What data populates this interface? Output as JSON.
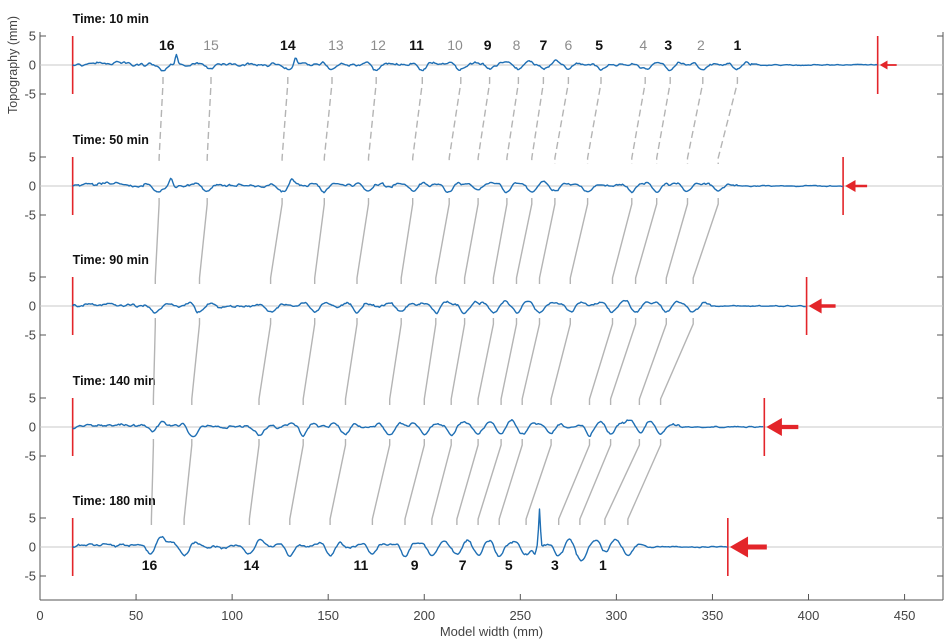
{
  "chart_data": {
    "type": "line",
    "xlabel": "Model width (mm)",
    "ylabel": "Topography (mm)",
    "xlim": [
      0,
      470
    ],
    "ylim": [
      -5,
      5
    ],
    "x_ticks": [
      0,
      50,
      100,
      150,
      200,
      250,
      300,
      350,
      400,
      450
    ],
    "y_ticks": [
      5,
      0,
      -5
    ],
    "colors": {
      "profile": "#1f6fb4",
      "boundary": "#e3252a",
      "zero_line": "#c8c8c8",
      "connector": "#b4b4b4",
      "label_dark": "#111111",
      "label_gray": "#8c8c8c"
    },
    "panels": [
      {
        "title": "Time: 10 min",
        "left_x": 17,
        "right_x": 436,
        "arrow_size": 1,
        "thrust_positions": [
          64,
          89,
          129,
          152,
          175,
          199,
          219,
          234,
          249,
          262,
          275,
          292,
          315,
          328,
          345,
          363
        ],
        "labels": [
          {
            "text": "16",
            "x": 66,
            "bold": true
          },
          {
            "text": "15",
            "x": 89,
            "bold": false
          },
          {
            "text": "14",
            "x": 129,
            "bold": true
          },
          {
            "text": "13",
            "x": 154,
            "bold": false
          },
          {
            "text": "12",
            "x": 176,
            "bold": false
          },
          {
            "text": "11",
            "x": 196,
            "bold": true
          },
          {
            "text": "10",
            "x": 216,
            "bold": false
          },
          {
            "text": "9",
            "x": 233,
            "bold": true
          },
          {
            "text": "8",
            "x": 248,
            "bold": false
          },
          {
            "text": "7",
            "x": 262,
            "bold": true
          },
          {
            "text": "6",
            "x": 275,
            "bold": false
          },
          {
            "text": "5",
            "x": 291,
            "bold": true
          },
          {
            "text": "4",
            "x": 314,
            "bold": false
          },
          {
            "text": "3",
            "x": 327,
            "bold": true
          },
          {
            "text": "2",
            "x": 344,
            "bold": false
          },
          {
            "text": "1",
            "x": 363,
            "bold": true
          }
        ]
      },
      {
        "title": "Time: 50 min",
        "left_x": 17,
        "right_x": 418,
        "arrow_size": 2,
        "thrust_positions": [
          62,
          87,
          126,
          148,
          171,
          194,
          213,
          228,
          243,
          256,
          268,
          285,
          308,
          321,
          337,
          353
        ],
        "labels": []
      },
      {
        "title": "Time: 90 min",
        "left_x": 17,
        "right_x": 399,
        "arrow_size": 3,
        "thrust_positions": [
          60,
          83,
          120,
          143,
          165,
          188,
          206,
          221,
          236,
          248,
          260,
          276,
          298,
          310,
          326,
          340
        ],
        "labels": []
      },
      {
        "title": "Time: 140 min",
        "left_x": 17,
        "right_x": 377,
        "arrow_size": 4,
        "thrust_positions": [
          59,
          79,
          114,
          137,
          159,
          182,
          200,
          214,
          228,
          240,
          251,
          266,
          286,
          297,
          312,
          323
        ],
        "labels": []
      },
      {
        "title": "Time: 180 min",
        "left_x": 17,
        "right_x": 358,
        "arrow_size": 5,
        "thrust_positions": [
          58,
          75,
          109,
          130,
          151,
          173,
          190,
          204,
          217,
          228,
          239,
          253,
          270,
          281,
          294,
          306
        ],
        "labels": [
          {
            "text": "16",
            "x": 57,
            "bold": true
          },
          {
            "text": "14",
            "x": 110,
            "bold": true
          },
          {
            "text": "11",
            "x": 167,
            "bold": true
          },
          {
            "text": "9",
            "x": 195,
            "bold": true
          },
          {
            "text": "7",
            "x": 220,
            "bold": true
          },
          {
            "text": "5",
            "x": 244,
            "bold": true
          },
          {
            "text": "3",
            "x": 268,
            "bold": true
          },
          {
            "text": "1",
            "x": 293,
            "bold": true
          }
        ]
      }
    ]
  }
}
